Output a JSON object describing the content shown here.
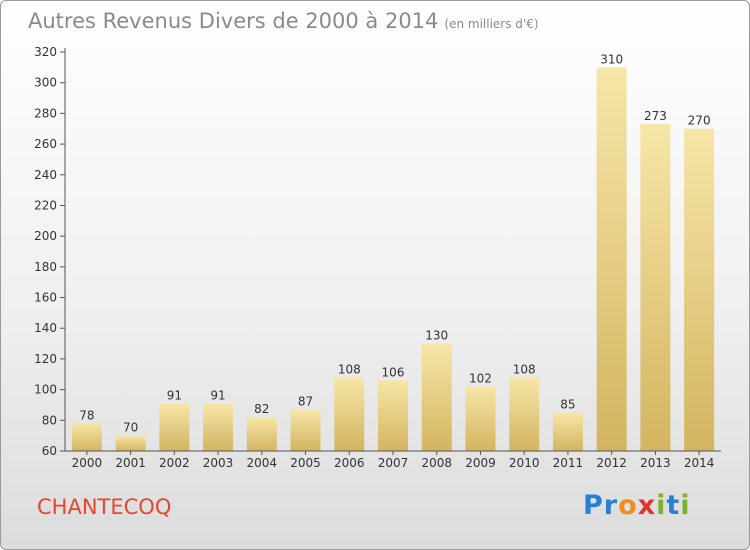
{
  "title": "Autres Revenus Divers de 2000 à 2014",
  "subtitle": "(en milliers d'€)",
  "commune": "CHANTECOQ",
  "logo": {
    "letters": [
      "P",
      "r",
      "o",
      "x",
      "i",
      "t",
      "i"
    ],
    "colors": [
      "#2a7fd4",
      "#2a7fd4",
      "#f28c1e",
      "#e5322d",
      "#7ab32e",
      "#2a7fd4",
      "#7ab32e"
    ]
  },
  "colors": {
    "bar": "#e2c77a",
    "bar_light": "#f7e6a8",
    "axis": "#555555",
    "title": "#8a8a8a",
    "commune": "#e8452c"
  },
  "chart_data": {
    "type": "bar",
    "categories": [
      "2000",
      "2001",
      "2002",
      "2003",
      "2004",
      "2005",
      "2006",
      "2007",
      "2008",
      "2009",
      "2010",
      "2011",
      "2012",
      "2013",
      "2014"
    ],
    "values": [
      78,
      70,
      91,
      91,
      82,
      87,
      108,
      106,
      130,
      102,
      108,
      85,
      310,
      273,
      270
    ],
    "title": "Autres Revenus Divers de 2000 à 2014",
    "xlabel": "",
    "ylabel": "",
    "ylim": [
      60,
      320
    ],
    "yticks": [
      60,
      80,
      100,
      120,
      140,
      160,
      180,
      200,
      220,
      240,
      260,
      280,
      300,
      320
    ],
    "grid": false,
    "legend": "none"
  }
}
